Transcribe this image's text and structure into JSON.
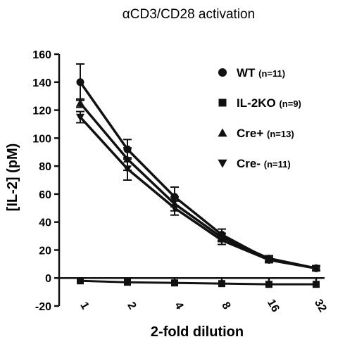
{
  "chart_data": {
    "type": "line",
    "title": "αCD3/CD28 activation",
    "xlabel": "2-fold dilution",
    "ylabel": "[IL-2] (pM)",
    "x_scale": "log2",
    "categories": [
      "1",
      "2",
      "4",
      "8",
      "16",
      "32"
    ],
    "ylim": [
      -20,
      160
    ],
    "yticks": [
      -20,
      0,
      20,
      40,
      60,
      80,
      100,
      120,
      140,
      160
    ],
    "grid": false,
    "legend_position": "top-right",
    "series": [
      {
        "name": "WT",
        "n_label": "(n=11)",
        "marker": "circle",
        "values": [
          140,
          92,
          58,
          31,
          13,
          7
        ],
        "errors": [
          13,
          7,
          7,
          4,
          2,
          1.5
        ]
      },
      {
        "name": "IL-2KO",
        "n_label": "(n=9)",
        "marker": "square",
        "values": [
          -2,
          -3,
          -3.5,
          -4,
          -4.5,
          -4.5
        ],
        "errors": [
          0.5,
          0.5,
          0.5,
          0.5,
          0.5,
          0.5
        ]
      },
      {
        "name": "Cre+",
        "n_label": "(n=13)",
        "marker": "triangle-up",
        "values": [
          125,
          85,
          53,
          29,
          14,
          7
        ],
        "errors": [
          3,
          8,
          5,
          3,
          2,
          1.5
        ]
      },
      {
        "name": "Cre-",
        "n_label": "(n=11)",
        "marker": "triangle-down",
        "values": [
          115,
          78,
          50,
          27,
          13,
          7
        ],
        "errors": [
          4,
          8,
          5,
          3,
          2,
          1.5
        ]
      }
    ]
  }
}
